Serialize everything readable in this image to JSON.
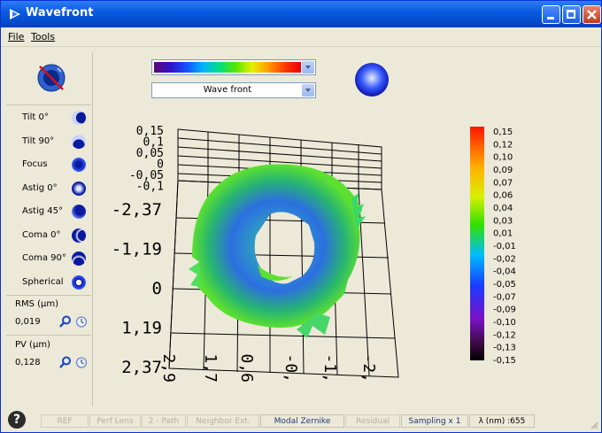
{
  "window": {
    "title": "Wavefront"
  },
  "menu": [
    "File",
    "Tools"
  ],
  "zernike": [
    {
      "label": "Tilt 0°",
      "icon": "tilt-0-icon"
    },
    {
      "label": "Tilt 90°",
      "icon": "tilt-90-icon"
    },
    {
      "label": "Focus",
      "icon": "focus-icon"
    },
    {
      "label": "Astig 0°",
      "icon": "astig-0-icon"
    },
    {
      "label": "Astig 45°",
      "icon": "astig-45-icon"
    },
    {
      "label": "Coma 0°",
      "icon": "coma-0-icon"
    },
    {
      "label": "Coma 90°",
      "icon": "coma-90-icon"
    },
    {
      "label": "Spherical",
      "icon": "spherical-icon"
    }
  ],
  "rms": {
    "label": "RMS (µm)",
    "value": "0,019"
  },
  "pv": {
    "label": "PV (µm)",
    "value": "0,128"
  },
  "display": {
    "mode": "Wave front",
    "colormap": "rainbow"
  },
  "plot": {
    "z_ticks": [
      "0,15",
      "0,1",
      "0,05",
      "0",
      "-0,05",
      "-0,1"
    ],
    "y_ticks": [
      "-2,37",
      "-1,19",
      "0",
      "1,19",
      "2,37"
    ],
    "x_ticks": [
      "2,9",
      "1,7",
      "0,6",
      "-0,",
      "-1,",
      "-2,"
    ]
  },
  "scale_labels": [
    "0,15",
    "0,12",
    "0,10",
    "0,09",
    "0,07",
    "0,06",
    "0,04",
    "0,03",
    "0,01",
    "-0,01",
    "-0,02",
    "-0,04",
    "-0,05",
    "-0,07",
    "-0,09",
    "-0,10",
    "-0,12",
    "-0,13",
    "-0,15"
  ],
  "status": {
    "buttons": [
      "REF",
      "Perf Lens",
      "2 - Path",
      "Neighbor Ext.",
      "Modal Zernike",
      "Residual"
    ],
    "sampling": "Sampling x 1",
    "lambda": "λ (nm) :655"
  },
  "colors": {
    "titlebar": "#0a5be0",
    "panel": "#ece9d8",
    "accent": "#1f3a7a"
  }
}
